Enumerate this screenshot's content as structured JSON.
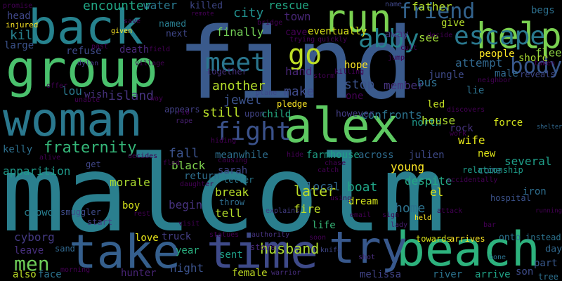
{
  "words": [
    {
      "text": "malcolm",
      "color": "#2a7f8e"
    },
    {
      "text": "find",
      "color": "#3a5a8c"
    },
    {
      "text": "group",
      "color": "#4ac16d"
    },
    {
      "text": "back",
      "color": "#26828e"
    },
    {
      "text": "woman",
      "color": "#2a788e"
    },
    {
      "text": "take",
      "color": "#355f8d"
    },
    {
      "text": "time",
      "color": "#3e4a89"
    },
    {
      "text": "beach",
      "color": "#2db27d"
    },
    {
      "text": "try",
      "color": "#38588c"
    },
    {
      "text": "alex",
      "color": "#5ec962"
    },
    {
      "text": "run",
      "color": "#7ad151"
    },
    {
      "text": "help",
      "color": "#7ad151"
    },
    {
      "text": "body",
      "color": "#38588c"
    },
    {
      "text": "fight",
      "color": "#3b528b"
    },
    {
      "text": "meet",
      "color": "#2a768e"
    },
    {
      "text": "abby",
      "color": "#26828e"
    },
    {
      "text": "friend",
      "color": "#33638d"
    },
    {
      "text": "escape",
      "color": "#2a788e"
    },
    {
      "text": "go",
      "color": "#bddf26"
    },
    {
      "text": "fraternity",
      "color": "#35b779"
    },
    {
      "text": "men",
      "color": "#6ece58"
    },
    {
      "text": "apparition",
      "color": "#1f9a8a"
    },
    {
      "text": "cyborg",
      "color": "#443a83"
    },
    {
      "text": "husband",
      "color": "#addc30"
    },
    {
      "text": "later",
      "color": "#bddf26"
    },
    {
      "text": "boat",
      "color": "#20a486"
    },
    {
      "text": "home",
      "color": "#2c728e"
    },
    {
      "text": "encounter",
      "color": "#21a685"
    },
    {
      "text": "head",
      "color": "#3f4788"
    },
    {
      "text": "kill",
      "color": "#277f8e"
    },
    {
      "text": "large",
      "color": "#3b528b"
    },
    {
      "text": "water",
      "color": "#2a788e"
    },
    {
      "text": "killed",
      "color": "#3f4788"
    },
    {
      "text": "city",
      "color": "#218f8d"
    },
    {
      "text": "rescue",
      "color": "#22a884"
    },
    {
      "text": "town",
      "color": "#482677"
    },
    {
      "text": "name",
      "color": "#3f4788"
    },
    {
      "text": "father",
      "color": "#b5de2b"
    },
    {
      "text": "begs",
      "color": "#2d708e"
    },
    {
      "text": "give",
      "color": "#b5de2b"
    },
    {
      "text": "see",
      "color": "#9fda3a"
    },
    {
      "text": "flee",
      "color": "#90d743"
    },
    {
      "text": "finally",
      "color": "#73d056"
    },
    {
      "text": "eventually",
      "color": "#d8e219"
    },
    {
      "text": "named",
      "color": "#287c8e"
    },
    {
      "text": "next",
      "color": "#3f4788"
    },
    {
      "text": "cave",
      "color": "#440154"
    },
    {
      "text": "away",
      "color": "#46337e"
    },
    {
      "text": "reveals",
      "color": "#3f4788"
    },
    {
      "text": "shore",
      "color": "#aadc32"
    },
    {
      "text": "people",
      "color": "#fde725"
    },
    {
      "text": "refuse",
      "color": "#3e4a89"
    },
    {
      "text": "death",
      "color": "#482878"
    },
    {
      "text": "island",
      "color": "#46337e"
    },
    {
      "text": "lou",
      "color": "#2a788e"
    },
    {
      "text": "wish",
      "color": "#46327e"
    },
    {
      "text": "another",
      "color": "#b5de2b"
    },
    {
      "text": "jewel",
      "color": "#3b528b"
    },
    {
      "text": "make",
      "color": "#3e4a89"
    },
    {
      "text": "still",
      "color": "#b8de29"
    },
    {
      "text": "hand",
      "color": "#482677"
    },
    {
      "text": "hope",
      "color": "#fde725"
    },
    {
      "text": "stop",
      "color": "#3b528b"
    },
    {
      "text": "member",
      "color": "#46337e"
    },
    {
      "text": "bus",
      "color": "#2e6e8e"
    },
    {
      "text": "attempt",
      "color": "#31688e"
    },
    {
      "text": "led",
      "color": "#c2df23"
    },
    {
      "text": "north",
      "color": "#1f988b"
    },
    {
      "text": "house",
      "color": "#addc30"
    },
    {
      "text": "rock",
      "color": "#46327e"
    },
    {
      "text": "force",
      "color": "#d2e21b"
    },
    {
      "text": "shelter",
      "color": "#31688e"
    },
    {
      "text": "confronts",
      "color": "#2c738e"
    },
    {
      "text": "however",
      "color": "#433e85"
    },
    {
      "text": "child",
      "color": "#25ab82"
    },
    {
      "text": "upon",
      "color": "#414487"
    },
    {
      "text": "wife",
      "color": "#e2e418"
    },
    {
      "text": "several",
      "color": "#1f9e89"
    },
    {
      "text": "new",
      "color": "#dde318"
    },
    {
      "text": "kelly",
      "color": "#2d708e"
    },
    {
      "text": "fall",
      "color": "#3b528b"
    },
    {
      "text": "meanwhile",
      "color": "#2e6e8e"
    },
    {
      "text": "julien",
      "color": "#3e4a89"
    },
    {
      "text": "across",
      "color": "#2f6c8e"
    },
    {
      "text": "farmhouse",
      "color": "#1fa187"
    },
    {
      "text": "sarah",
      "color": "#3f4788"
    },
    {
      "text": "young",
      "color": "#fde725"
    },
    {
      "text": "morale",
      "color": "#addc30"
    },
    {
      "text": "black",
      "color": "#7fd34e"
    },
    {
      "text": "return",
      "color": "#2e6e8e"
    },
    {
      "text": "begin",
      "color": "#46327e"
    },
    {
      "text": "break",
      "color": "#b8de29"
    },
    {
      "text": "letter",
      "color": "#2a788e"
    },
    {
      "text": "local",
      "color": "#31688e"
    },
    {
      "text": "despite",
      "color": "#22a884"
    },
    {
      "text": "el",
      "color": "#dde318"
    },
    {
      "text": "come",
      "color": "#2d708e"
    },
    {
      "text": "fire",
      "color": "#c0df25"
    },
    {
      "text": "dream",
      "color": "#d0e11c"
    },
    {
      "text": "tell",
      "color": "#b5de2b"
    },
    {
      "text": "throw",
      "color": "#2e6e8e"
    },
    {
      "text": "boy",
      "color": "#d5e21a"
    },
    {
      "text": "start",
      "color": "#424086"
    },
    {
      "text": "smuggler",
      "color": "#3e4c8a"
    },
    {
      "text": "crowd",
      "color": "#287d8e"
    },
    {
      "text": "leave",
      "color": "#472f7d"
    },
    {
      "text": "sand",
      "color": "#31688e"
    },
    {
      "text": "love",
      "color": "#e7e419"
    },
    {
      "text": "truck",
      "color": "#433e85"
    },
    {
      "text": "year",
      "color": "#29af7f"
    },
    {
      "text": "night",
      "color": "#3b528b"
    },
    {
      "text": "hunter",
      "color": "#482575"
    },
    {
      "text": "also",
      "color": "#bddf26"
    },
    {
      "text": "face",
      "color": "#2c738e"
    },
    {
      "text": "sent",
      "color": "#1fa088"
    },
    {
      "text": "store",
      "color": "#482878"
    },
    {
      "text": "female",
      "color": "#c2df23"
    },
    {
      "text": "warrior",
      "color": "#472d7b"
    },
    {
      "text": "melissa",
      "color": "#414487"
    },
    {
      "text": "river",
      "color": "#2c738e"
    },
    {
      "text": "arrive",
      "color": "#20a386"
    },
    {
      "text": "son",
      "color": "#3e4c8a"
    },
    {
      "text": "tree",
      "color": "#2d708e"
    },
    {
      "text": "day",
      "color": "#31688e"
    },
    {
      "text": "part",
      "color": "#38588c"
    },
    {
      "text": "instead",
      "color": "#2c728e"
    },
    {
      "text": "iron",
      "color": "#2e6e8e"
    },
    {
      "text": "onto",
      "color": "#2c728e"
    },
    {
      "text": "towards",
      "color": "#d8e219"
    },
    {
      "text": "arrives",
      "color": "#fde725"
    },
    {
      "text": "life",
      "color": "#37b878"
    },
    {
      "text": "bone",
      "color": "#2c728e"
    },
    {
      "text": "relationship",
      "color": "#1e9c89"
    },
    {
      "text": "hospital",
      "color": "#3b528b"
    },
    {
      "text": "held",
      "color": "#fde725"
    },
    {
      "text": "lady",
      "color": "#481f70"
    },
    {
      "text": "shot",
      "color": "#472c7a"
    },
    {
      "text": "knife",
      "color": "#3f4788"
    },
    {
      "text": "authority",
      "color": "#46327e"
    },
    {
      "text": "explains",
      "color": "#433e85"
    },
    {
      "text": "plane",
      "color": "#3e4989"
    },
    {
      "text": "pledge",
      "color": "#fde725"
    },
    {
      "text": "together",
      "color": "#46327e"
    },
    {
      "text": "dylan",
      "color": "#443983"
    },
    {
      "text": "rape",
      "color": "#482071"
    },
    {
      "text": "appears",
      "color": "#424086"
    },
    {
      "text": "hiding",
      "color": "#440154"
    },
    {
      "text": "causing",
      "color": "#440154"
    },
    {
      "text": "chase",
      "color": "#440154"
    },
    {
      "text": "catch",
      "color": "#440154"
    },
    {
      "text": "hide",
      "color": "#440154"
    },
    {
      "text": "fled",
      "color": "#440154"
    },
    {
      "text": "alive",
      "color": "#440154"
    },
    {
      "text": "decides",
      "color": "#440154"
    },
    {
      "text": "get",
      "color": "#404688"
    },
    {
      "text": "save",
      "color": "#440154"
    },
    {
      "text": "injured",
      "color": "#fde725"
    },
    {
      "text": "promise",
      "color": "#440154"
    },
    {
      "text": "given",
      "color": "#fde725"
    },
    {
      "text": "past",
      "color": "#440154"
    },
    {
      "text": "remote",
      "color": "#440154"
    },
    {
      "text": "bridge",
      "color": "#440154"
    },
    {
      "text": "trying",
      "color": "#440154"
    },
    {
      "text": "quickly",
      "color": "#440154"
    },
    {
      "text": "cult",
      "color": "#440154"
    },
    {
      "text": "decide",
      "color": "#440154"
    },
    {
      "text": "jump",
      "color": "#440154"
    },
    {
      "text": "killing",
      "color": "#440154"
    },
    {
      "text": "storm",
      "color": "#440154"
    },
    {
      "text": "one",
      "color": "#440154"
    },
    {
      "text": "jungle",
      "color": "#3e4a89"
    },
    {
      "text": "male",
      "color": "#31688e"
    },
    {
      "text": "lie",
      "color": "#2c728e"
    },
    {
      "text": "neighbor",
      "color": "#440154"
    },
    {
      "text": "taken",
      "color": "#440154"
    },
    {
      "text": "offer",
      "color": "#440154"
    },
    {
      "text": "unable",
      "color": "#440154"
    },
    {
      "text": "way",
      "color": "#440154"
    },
    {
      "text": "village",
      "color": "#440154"
    },
    {
      "text": "field",
      "color": "#440154"
    },
    {
      "text": "rio",
      "color": "#440154"
    },
    {
      "text": "work",
      "color": "#440154"
    },
    {
      "text": "discovers",
      "color": "#440154"
    },
    {
      "text": "sign",
      "color": "#440154"
    },
    {
      "text": "attack",
      "color": "#440154"
    },
    {
      "text": "accidentally",
      "color": "#440154"
    },
    {
      "text": "daughter",
      "color": "#440154"
    },
    {
      "text": "using",
      "color": "#440154"
    },
    {
      "text": "email",
      "color": "#440154"
    },
    {
      "text": "running",
      "color": "#440154"
    },
    {
      "text": "soon",
      "color": "#440154"
    },
    {
      "text": "rest",
      "color": "#440154"
    },
    {
      "text": "morning",
      "color": "#440154"
    },
    {
      "text": "visit",
      "color": "#440154"
    },
    {
      "text": "statues",
      "color": "#440154"
    },
    {
      "text": "bar",
      "color": "#440154"
    }
  ]
}
